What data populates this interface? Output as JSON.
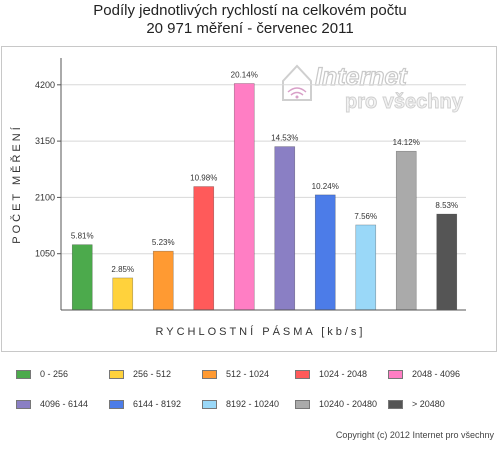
{
  "title_lines": [
    "Podíly jednotlivých rychlostí na celkovém počtu",
    "20 971 měření - červenec 2011"
  ],
  "watermark": {
    "line1": "Internet",
    "line2": "pro všechny"
  },
  "footer": "Copyright (c) 2012 Internet pro všechny",
  "colors": {
    "accent_watermark": "#c9c9c9",
    "grid": "#d8d8d8",
    "axis": "#555555"
  },
  "chart_data": {
    "type": "bar",
    "title": "Podíly jednotlivých rychlostí na celkovém počtu 20 971 měření - červenec 2011",
    "xlabel": "RYCHLOSTNÍ PÁSMA [kb/s]",
    "ylabel": "POČET MĚŘENÍ",
    "ylim": [
      0,
      4700
    ],
    "yticks": [
      1050,
      2100,
      3150,
      4200
    ],
    "grid": true,
    "legend_placement": "bottom",
    "categories": [
      "0 - 256",
      "256 - 512",
      "512 - 1024",
      "1024 - 2048",
      "2048 - 4096",
      "4096 - 6144",
      "6144 - 8192",
      "8192 - 10240",
      "10240 - 20480",
      "> 20480"
    ],
    "values": [
      1218,
      598,
      1097,
      2302,
      4224,
      3047,
      2147,
      1586,
      2961,
      1789
    ],
    "data_labels": [
      "5.81%",
      "2.85%",
      "5.23%",
      "10.98%",
      "20.14%",
      "14.53%",
      "10.24%",
      "7.56%",
      "14.12%",
      "8.53%"
    ],
    "colors": [
      "#4caa4c",
      "#ffd23c",
      "#ff9a32",
      "#ff5a5a",
      "#ff7ec4",
      "#8a7fc4",
      "#4c7ce8",
      "#9ad8f8",
      "#aaaaaa",
      "#555555"
    ]
  }
}
